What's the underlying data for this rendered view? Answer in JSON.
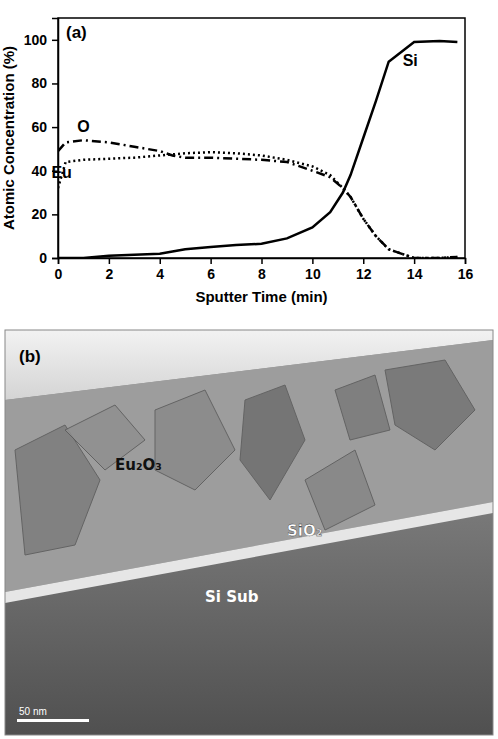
{
  "chart_data": {
    "type": "line",
    "title": "(a)",
    "x_label": "Sputter Time (min)",
    "y_label": "Atomic Concentration (%)",
    "x": [
      0,
      0.3,
      1,
      2,
      3,
      4,
      4.5,
      5,
      6,
      7,
      8,
      9,
      10,
      10.7,
      11.2,
      11.5,
      12,
      12.5,
      13,
      14,
      15,
      15.7
    ],
    "xlim": [
      0,
      16
    ],
    "xticks": [
      0,
      2,
      4,
      6,
      8,
      10,
      12,
      14,
      16
    ],
    "ylim": [
      0,
      110
    ],
    "yticks": [
      0,
      20,
      40,
      60,
      80,
      100
    ],
    "series": [
      {
        "name": "O",
        "color": "#000000",
        "line_style": "dashdot",
        "values": [
          49,
          53,
          54,
          53,
          51,
          49,
          47,
          46,
          46,
          45.5,
          45,
          44,
          40,
          37,
          32,
          28,
          18,
          10,
          4,
          0,
          0,
          0.5
        ]
      },
      {
        "name": "Eu",
        "color": "#000000",
        "line_style": "dotted",
        "values": [
          32,
          44,
          45,
          45.5,
          46,
          47,
          47.5,
          48,
          48.5,
          48,
          47,
          45,
          42,
          38,
          32,
          28,
          18,
          10,
          4,
          0,
          0,
          0.5
        ]
      },
      {
        "name": "Si",
        "color": "#000000",
        "line_style": "solid",
        "values": [
          0,
          0,
          0,
          1,
          1.5,
          2,
          3,
          4,
          5,
          6,
          6.5,
          9,
          14,
          21,
          30,
          38,
          55,
          72,
          90,
          99,
          99.5,
          99
        ]
      }
    ]
  },
  "micrograph": {
    "panel_label": "(b)",
    "film_label": "Eu₂O₃",
    "interlayer_label": "SiO₂",
    "substrate_label": "Si Sub",
    "scale_bar": "50 nm"
  }
}
